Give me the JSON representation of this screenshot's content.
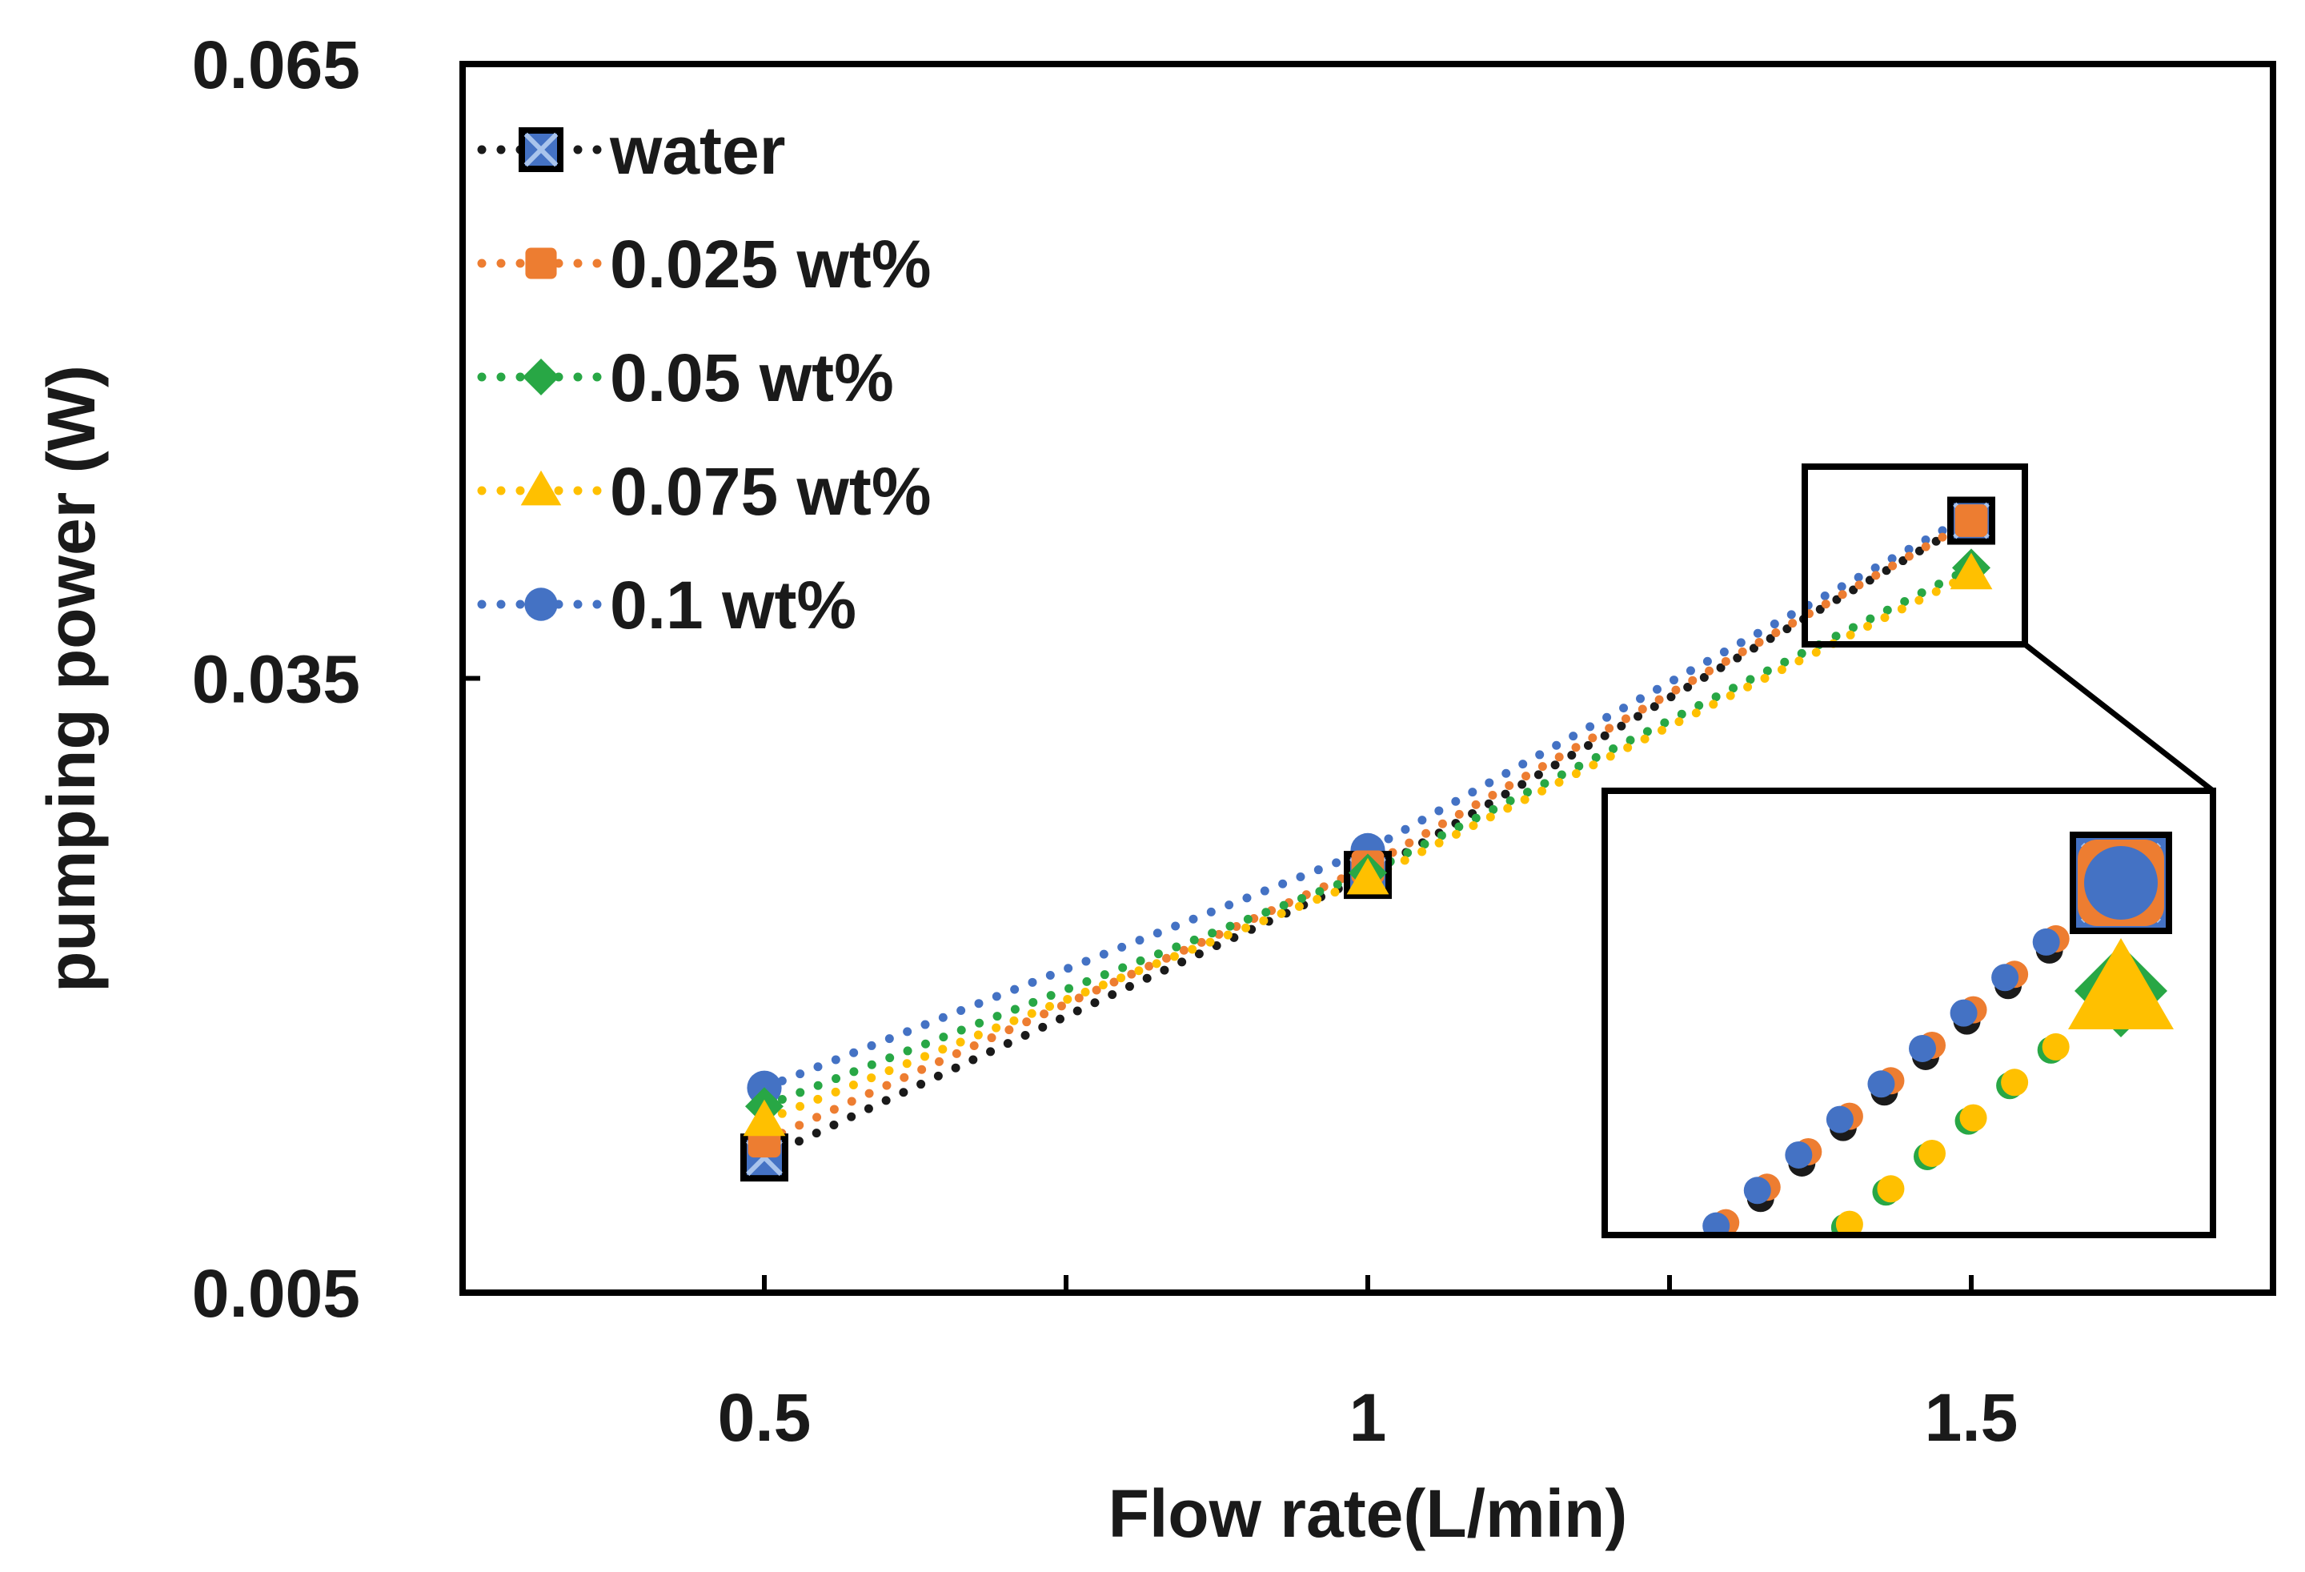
{
  "chart_data": {
    "type": "line",
    "title": "",
    "xlabel": "Flow rate(L/min)",
    "ylabel": "pumping power (W)",
    "x": [
      0.5,
      1,
      1.5
    ],
    "xlim": [
      0.25,
      1.75
    ],
    "ylim": [
      0.005,
      0.065
    ],
    "x_ticks": [
      0.5,
      1,
      1.5
    ],
    "x_tick_labels": [
      "0.5",
      "1",
      "1.5"
    ],
    "y_ticks": [
      0.005,
      0.035,
      0.065
    ],
    "y_tick_labels": [
      "0.005",
      "0.035",
      "0.065"
    ],
    "legend_position": "top-left",
    "series": [
      {
        "name": "water",
        "marker": "square-x",
        "color": "#1a1a1a",
        "marker_color": "#4472c4",
        "values": [
          0.0116,
          0.0254,
          0.0427
        ]
      },
      {
        "name": "0.025 wt%",
        "marker": "square",
        "color": "#ed7d31",
        "marker_color": "#ed7d31",
        "values": [
          0.0124,
          0.0258,
          0.0427
        ]
      },
      {
        "name": "0.05 wt%",
        "marker": "diamond",
        "color": "#28a745",
        "marker_color": "#28a745",
        "values": [
          0.0141,
          0.0255,
          0.0404
        ]
      },
      {
        "name": "0.075 wt%",
        "marker": "triangle",
        "color": "#ffc000",
        "marker_color": "#ffc000",
        "values": [
          0.0134,
          0.0252,
          0.0401
        ]
      },
      {
        "name": "0.1 wt%",
        "marker": "circle",
        "color": "#4472c4",
        "marker_color": "#4472c4",
        "values": [
          0.015,
          0.0266,
          0.043
        ]
      }
    ],
    "inset": {
      "description_label": "",
      "zoom_of_x": 1.5
    }
  }
}
